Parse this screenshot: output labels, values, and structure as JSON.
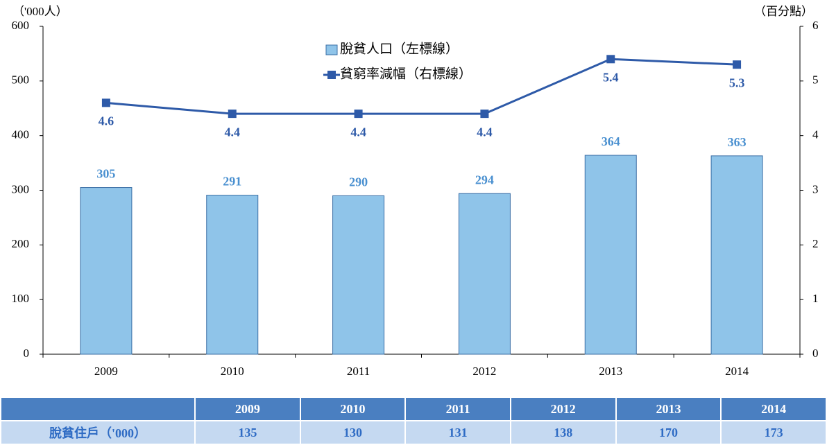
{
  "chart_data": {
    "type": "bar",
    "ylabel": "（'000人）",
    "y2label": "（百分點）",
    "categories": [
      "2009",
      "2010",
      "2011",
      "2012",
      "2013",
      "2014"
    ],
    "series": [
      {
        "name": "脫貧人口（左標線）",
        "type": "bar",
        "color": "#8fc4e9",
        "label_color": "#4a90d0",
        "values": [
          305,
          291,
          290,
          294,
          364,
          363
        ]
      },
      {
        "name": "貧窮率減幅（右標線）",
        "type": "line",
        "axis": "y2",
        "color": "#2e5aa8",
        "label_color": "#2e5aa8",
        "values": [
          4.6,
          4.4,
          4.4,
          4.4,
          5.4,
          5.3
        ]
      }
    ],
    "ylim": [
      0,
      600
    ],
    "yticks": [
      0,
      100,
      200,
      300,
      400,
      500,
      600
    ],
    "y2lim": [
      0,
      6
    ],
    "y2ticks": [
      0,
      1,
      2,
      3,
      4,
      5,
      6
    ],
    "grid": false
  },
  "table": {
    "rows": [
      {
        "label": "脫貧住戶（'000）",
        "values": [
          135,
          130,
          131,
          138,
          170,
          173
        ]
      }
    ]
  }
}
